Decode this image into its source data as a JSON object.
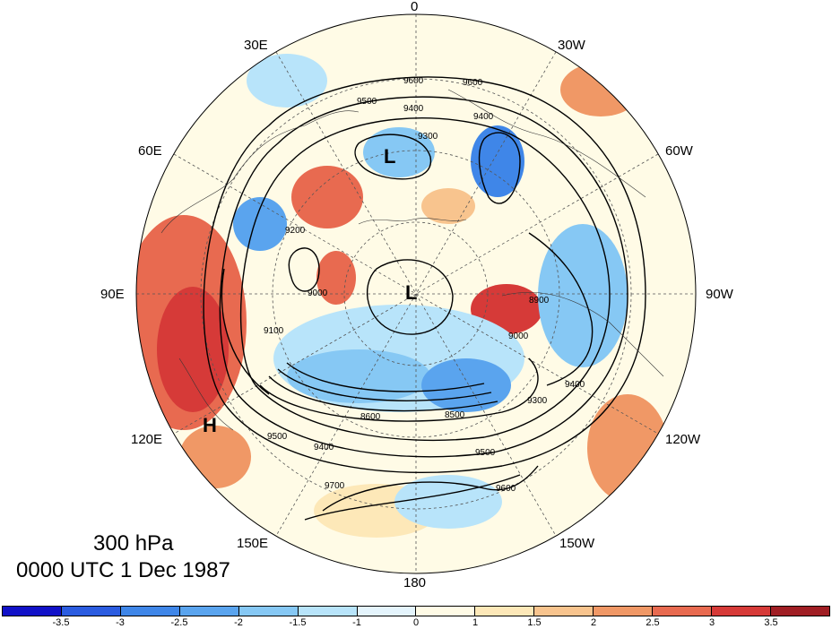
{
  "map": {
    "level_label": "300 hPa",
    "time_label": "0000 UTC 1 Dec 1987",
    "longitude_labels": [
      "0",
      "30W",
      "60W",
      "90W",
      "120W",
      "150W",
      "180",
      "150E",
      "120E",
      "90E",
      "60E",
      "30E"
    ],
    "contour_labels": [
      "9600",
      "9600",
      "9500",
      "9400",
      "9400",
      "9300",
      "9200",
      "9100",
      "9000",
      "9000",
      "8900",
      "8600",
      "8500",
      "9300",
      "9400",
      "9500",
      "9600",
      "9700",
      "9500",
      "9400"
    ],
    "pressure_systems": [
      "L",
      "L",
      "H"
    ]
  },
  "colorbar": {
    "tick_labels": [
      "-3.5",
      "-3",
      "-2.5",
      "-2",
      "-1.5",
      "-1",
      "0",
      "1",
      "1.5",
      "2",
      "2.5",
      "3",
      "3.5"
    ],
    "colors": [
      "#1111c8",
      "#2b5ce0",
      "#3f86e8",
      "#5aa4ee",
      "#86c8f4",
      "#b8e4fa",
      "#e4f4fc",
      "#fffbe6",
      "#fde8b8",
      "#f8c48e",
      "#f09866",
      "#e86a50",
      "#d63a38",
      "#a01e24"
    ]
  }
}
